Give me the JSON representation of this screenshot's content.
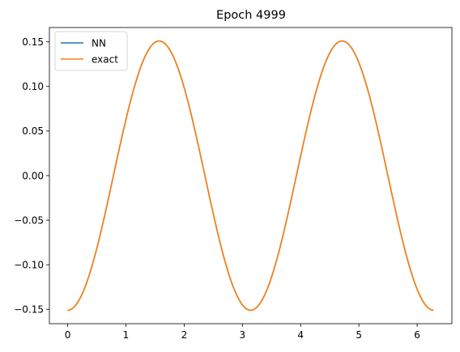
{
  "chart_data": {
    "type": "line",
    "title": "Epoch 4999",
    "xlabel": "",
    "ylabel": "",
    "xlim": [
      -0.314,
      6.597
    ],
    "ylim": [
      -0.1661,
      0.1661
    ],
    "xticks": [
      0,
      1,
      2,
      3,
      4,
      5,
      6
    ],
    "yticks": [
      -0.15,
      -0.1,
      -0.05,
      0.0,
      0.05,
      0.1,
      0.15
    ],
    "ytick_labels": [
      "−0.15",
      "−0.10",
      "−0.05",
      "0.00",
      "0.05",
      "0.10",
      "0.15"
    ],
    "grid": false,
    "legend_position": "upper-left",
    "series": [
      {
        "name": "NN",
        "color": "#1f77b4",
        "function": "-0.151*cos(2x)",
        "x_range": [
          0,
          6.2832
        ]
      },
      {
        "name": "exact",
        "color": "#ff7f0e",
        "function": "-0.151*cos(2x)",
        "x_range": [
          0,
          6.2832
        ]
      }
    ]
  }
}
